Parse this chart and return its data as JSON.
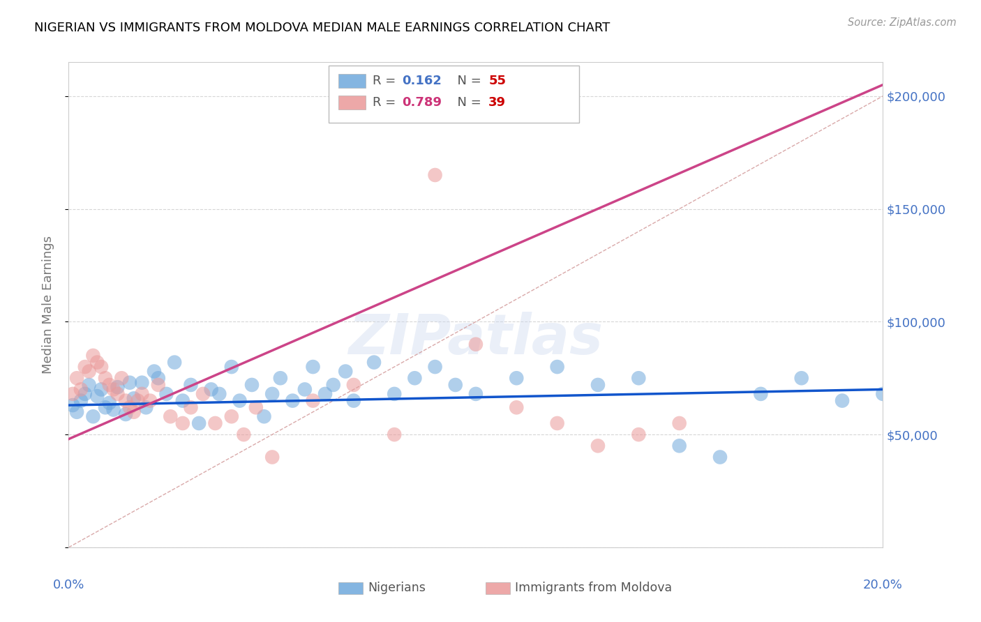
{
  "title": "NIGERIAN VS IMMIGRANTS FROM MOLDOVA MEDIAN MALE EARNINGS CORRELATION CHART",
  "source": "Source: ZipAtlas.com",
  "ylabel": "Median Male Earnings",
  "xlim": [
    0.0,
    0.2
  ],
  "ylim": [
    0,
    215000
  ],
  "yticks": [
    0,
    50000,
    100000,
    150000,
    200000
  ],
  "ytick_labels": [
    "",
    "$50,000",
    "$100,000",
    "$150,000",
    "$200,000"
  ],
  "xticks": [
    0.0,
    0.05,
    0.1,
    0.15,
    0.2
  ],
  "nigerians_label": "Nigerians",
  "moldova_label": "Immigrants from Moldova",
  "blue_color": "#6fa8dc",
  "pink_color": "#ea9999",
  "blue_line_color": "#1155cc",
  "pink_line_color": "#cc4488",
  "dashed_line_color": "#d5a0a0",
  "grid_color": "#cccccc",
  "background_color": "#ffffff",
  "title_color": "#000000",
  "source_color": "#999999",
  "axis_label_color": "#777777",
  "tick_color": "#4472c4",
  "watermark": "ZIPatlas",
  "nig_x": [
    0.001,
    0.002,
    0.003,
    0.004,
    0.005,
    0.006,
    0.007,
    0.008,
    0.009,
    0.01,
    0.011,
    0.012,
    0.014,
    0.015,
    0.016,
    0.018,
    0.019,
    0.021,
    0.022,
    0.024,
    0.026,
    0.028,
    0.03,
    0.032,
    0.035,
    0.037,
    0.04,
    0.042,
    0.045,
    0.048,
    0.05,
    0.052,
    0.055,
    0.058,
    0.06,
    0.063,
    0.065,
    0.068,
    0.07,
    0.075,
    0.08,
    0.085,
    0.09,
    0.095,
    0.1,
    0.11,
    0.12,
    0.13,
    0.14,
    0.15,
    0.16,
    0.17,
    0.18,
    0.19,
    0.2
  ],
  "nig_y": [
    63000,
    60000,
    65000,
    68000,
    72000,
    58000,
    67000,
    70000,
    62000,
    64000,
    61000,
    71000,
    59000,
    73000,
    66000,
    73000,
    62000,
    78000,
    75000,
    68000,
    82000,
    65000,
    72000,
    55000,
    70000,
    68000,
    80000,
    65000,
    72000,
    58000,
    68000,
    75000,
    65000,
    70000,
    80000,
    68000,
    72000,
    78000,
    65000,
    82000,
    68000,
    75000,
    80000,
    72000,
    68000,
    75000,
    80000,
    72000,
    75000,
    45000,
    40000,
    68000,
    75000,
    65000,
    68000
  ],
  "mol_x": [
    0.001,
    0.002,
    0.003,
    0.004,
    0.005,
    0.006,
    0.007,
    0.008,
    0.009,
    0.01,
    0.011,
    0.012,
    0.013,
    0.014,
    0.015,
    0.016,
    0.017,
    0.018,
    0.02,
    0.022,
    0.025,
    0.028,
    0.03,
    0.033,
    0.036,
    0.04,
    0.043,
    0.046,
    0.05,
    0.06,
    0.07,
    0.08,
    0.09,
    0.1,
    0.11,
    0.12,
    0.13,
    0.14,
    0.15
  ],
  "mol_y": [
    68000,
    75000,
    70000,
    80000,
    78000,
    85000,
    82000,
    80000,
    75000,
    72000,
    70000,
    68000,
    75000,
    65000,
    62000,
    60000,
    65000,
    68000,
    65000,
    72000,
    58000,
    55000,
    62000,
    68000,
    55000,
    58000,
    50000,
    62000,
    40000,
    65000,
    72000,
    50000,
    165000,
    90000,
    62000,
    55000,
    45000,
    50000,
    55000
  ],
  "nig_line_x": [
    0.0,
    0.2
  ],
  "nig_line_y": [
    63000,
    70000
  ],
  "mol_line_x": [
    0.0,
    0.2
  ],
  "mol_line_y": [
    48000,
    205000
  ]
}
